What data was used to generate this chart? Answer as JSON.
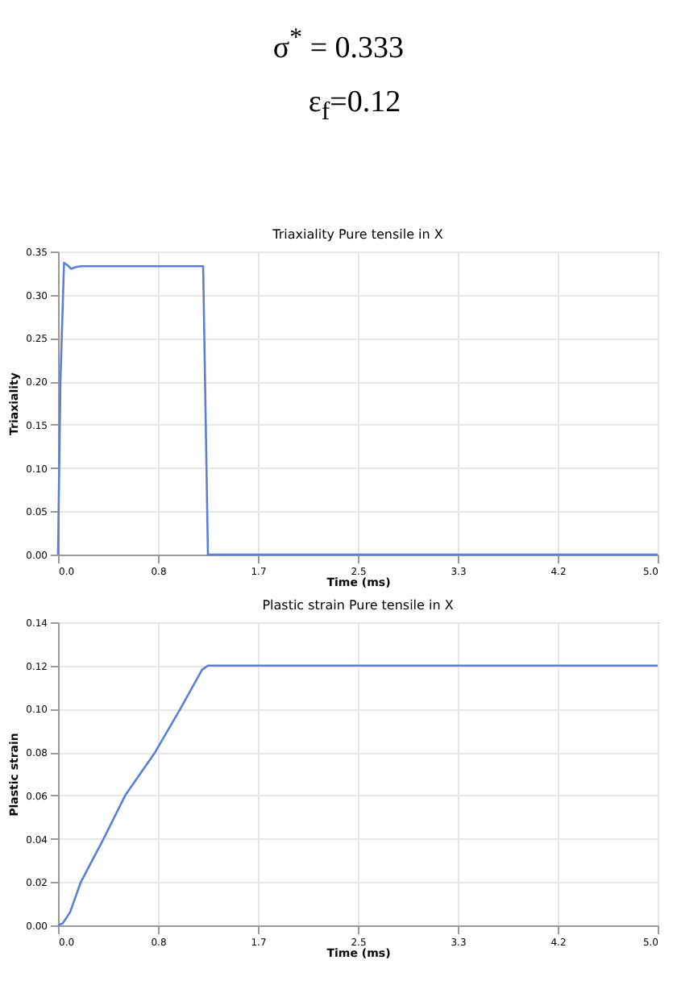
{
  "chart_data": [
    {
      "type": "line",
      "title": "Triaxiality Pure tensile in X",
      "xlabel": "Time (ms)",
      "ylabel": "Triaxiality",
      "annotations": [
        "σ$^{*}$ = 0.333",
        "ε$_{f}$=0.12"
      ],
      "x": [
        0,
        0.02,
        0.05,
        0.08,
        0.11,
        0.15,
        0.19,
        0.4,
        0.7,
        1.0,
        1.21,
        1.25,
        2.0,
        3.0,
        4.0,
        5.0
      ],
      "series": [
        {
          "color": "#5b7fd8",
          "values": [
            0,
            0.2,
            0.337,
            0.334,
            0.33,
            0.332,
            0.333,
            0.333,
            0.333,
            0.333,
            0.333,
            0,
            0,
            0,
            0,
            0
          ]
        }
      ],
      "xlim": [
        0,
        5
      ],
      "xticks": [
        {
          "value": 0,
          "label": "0.0"
        },
        {
          "value": 0.8333,
          "label": "0.8"
        },
        {
          "value": 1.6667,
          "label": "1.7"
        },
        {
          "value": 2.5,
          "label": "2.5"
        },
        {
          "value": 3.3333,
          "label": "3.3"
        },
        {
          "value": 4.1667,
          "label": "4.2"
        },
        {
          "value": 5,
          "label": "5.0"
        }
      ],
      "ylim": [
        0,
        0.35
      ],
      "yticks": [
        {
          "value": 0,
          "label": "0.00"
        },
        {
          "value": 0.05,
          "label": "0.05"
        },
        {
          "value": 0.1,
          "label": "0.10"
        },
        {
          "value": 0.15,
          "label": "0.15"
        },
        {
          "value": 0.2,
          "label": "0.20"
        },
        {
          "value": 0.25,
          "label": "0.25"
        },
        {
          "value": 0.3,
          "label": "0.30"
        },
        {
          "value": 0.35,
          "label": "0.35"
        }
      ],
      "grid": true,
      "marker": "none",
      "line_style": "solid"
    },
    {
      "type": "line",
      "title": "Plastic strain Pure tensile in X",
      "xlabel": "Time (ms)",
      "ylabel": "Plastic strain",
      "x": [
        0,
        0.04,
        0.1,
        0.19,
        0.38,
        0.56,
        0.81,
        1.02,
        1.2,
        1.25,
        2.0,
        3.0,
        4.0,
        5.0
      ],
      "series": [
        {
          "color": "#5b7fd8",
          "values": [
            0,
            0.001,
            0.006,
            0.02,
            0.04,
            0.06,
            0.08,
            0.1,
            0.118,
            0.12,
            0.12,
            0.12,
            0.12,
            0.12
          ]
        }
      ],
      "xlim": [
        0,
        5
      ],
      "xticks": [
        {
          "value": 0,
          "label": "0.0"
        },
        {
          "value": 0.8333,
          "label": "0.8"
        },
        {
          "value": 1.6667,
          "label": "1.7"
        },
        {
          "value": 2.5,
          "label": "2.5"
        },
        {
          "value": 3.3333,
          "label": "3.3"
        },
        {
          "value": 4.1667,
          "label": "4.2"
        },
        {
          "value": 5,
          "label": "5.0"
        }
      ],
      "ylim": [
        0,
        0.14
      ],
      "yticks": [
        {
          "value": 0,
          "label": "0.00"
        },
        {
          "value": 0.02,
          "label": "0.02"
        },
        {
          "value": 0.04,
          "label": "0.04"
        },
        {
          "value": 0.06,
          "label": "0.06"
        },
        {
          "value": 0.08,
          "label": "0.08"
        },
        {
          "value": 0.1,
          "label": "0.10"
        },
        {
          "value": 0.12,
          "label": "0.12"
        },
        {
          "value": 0.14,
          "label": "0.14"
        }
      ],
      "grid": true,
      "marker": "none",
      "line_style": "solid"
    }
  ]
}
